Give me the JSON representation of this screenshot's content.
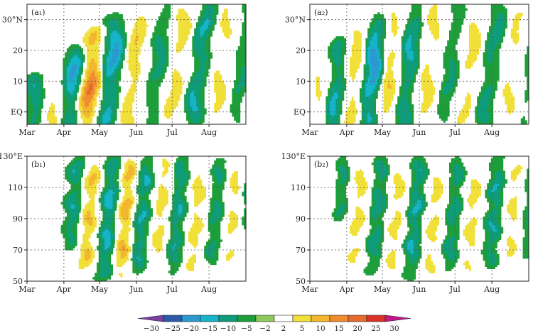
{
  "figure": {
    "palette": [
      "#7b3fa0",
      "#2c5aa8",
      "#2a9ad0",
      "#16b4c8",
      "#0f9c7a",
      "#1e9e3a",
      "#8fca5c",
      "#ffffff",
      "#f2e03a",
      "#f3b62e",
      "#ee8c2e",
      "#e56a2f",
      "#d8322a",
      "#c2188a"
    ]
  },
  "chart_data": [
    {
      "panel_label": "(a₁)",
      "type": "heatmap",
      "xlabel": "",
      "ylabel": "",
      "x_ticks": [
        "Mar",
        "Apr",
        "May",
        "Jun",
        "Jul",
        "Aug"
      ],
      "y_ticks": [
        "EQ",
        "10",
        "20",
        "30°N"
      ],
      "y_tick_values": [
        0,
        10,
        20,
        30
      ],
      "ylim": [
        -4,
        35
      ],
      "x_domain_days": [
        0,
        184
      ],
      "grid": true,
      "bands": [
        {
          "day": 5,
          "width": 7,
          "peak": -11,
          "ymax": 10,
          "amp": 3
        },
        {
          "day": 22,
          "width": 7,
          "peak": 9,
          "ymax": 14,
          "amp": 4
        },
        {
          "day": 36,
          "width": 9,
          "peak": -17,
          "ymax": 20,
          "amp": 4
        },
        {
          "day": 50,
          "width": 9,
          "peak": 22,
          "ymax": 26,
          "amp": 4
        },
        {
          "day": 66,
          "width": 9,
          "peak": -18,
          "ymax": 30,
          "amp": 5
        },
        {
          "day": 84,
          "width": 9,
          "peak": 11,
          "ymax": 33,
          "amp": 5
        },
        {
          "day": 104,
          "width": 8,
          "peak": -8,
          "ymax": 35,
          "amp": 6
        },
        {
          "day": 120,
          "width": 8,
          "peak": 10,
          "ymax": 35,
          "amp": 6
        },
        {
          "day": 139,
          "width": 8,
          "peak": -12,
          "ymax": 35,
          "amp": 6
        },
        {
          "day": 157,
          "width": 8,
          "peak": 8,
          "ymax": 35,
          "amp": 6
        },
        {
          "day": 175,
          "width": 7,
          "peak": -6,
          "ymax": 35,
          "amp": 5
        }
      ]
    },
    {
      "panel_label": "(a₂)",
      "type": "heatmap",
      "xlabel": "",
      "ylabel": "",
      "x_ticks": [
        "Mar",
        "Apr",
        "May",
        "Jun",
        "Jul",
        "Aug"
      ],
      "y_ticks": [
        "EQ",
        "10",
        "20",
        "30°N"
      ],
      "y_tick_values": [
        0,
        10,
        20,
        30
      ],
      "ylim": [
        -4,
        35
      ],
      "x_domain_days": [
        0,
        184
      ],
      "grid": true,
      "bands": [
        {
          "day": 6,
          "width": 6,
          "peak": 6,
          "ymax": 14,
          "amp": 3
        },
        {
          "day": 20,
          "width": 7,
          "peak": -12,
          "ymax": 22,
          "amp": 4
        },
        {
          "day": 34,
          "width": 8,
          "peak": 11,
          "ymax": 26,
          "amp": 4
        },
        {
          "day": 48,
          "width": 8,
          "peak": -21,
          "ymax": 30,
          "amp": 5
        },
        {
          "day": 62,
          "width": 8,
          "peak": 11,
          "ymax": 32,
          "amp": 5
        },
        {
          "day": 78,
          "width": 8,
          "peak": -12,
          "ymax": 34,
          "amp": 5
        },
        {
          "day": 94,
          "width": 8,
          "peak": 9,
          "ymax": 35,
          "amp": 6
        },
        {
          "day": 112,
          "width": 8,
          "peak": -7,
          "ymax": 35,
          "amp": 6
        },
        {
          "day": 128,
          "width": 8,
          "peak": 9,
          "ymax": 35,
          "amp": 6
        },
        {
          "day": 146,
          "width": 8,
          "peak": -9,
          "ymax": 35,
          "amp": 6
        },
        {
          "day": 164,
          "width": 8,
          "peak": 7,
          "ymax": 35,
          "amp": 6
        },
        {
          "day": 180,
          "width": 6,
          "peak": -5,
          "ymax": 35,
          "amp": 5
        }
      ]
    },
    {
      "panel_label": "(b₁)",
      "type": "heatmap",
      "xlabel": "",
      "ylabel": "",
      "x_ticks": [
        "Mar",
        "Apr",
        "May",
        "Jun",
        "Jul",
        "Aug"
      ],
      "y_ticks": [
        "50",
        "70",
        "90",
        "110",
        "130°E"
      ],
      "y_tick_values": [
        50,
        70,
        90,
        110,
        130
      ],
      "ylim": [
        50,
        130
      ],
      "x_domain_days": [
        0,
        184
      ],
      "grid": true,
      "bands": [
        {
          "day": 14,
          "width": 6,
          "peak": 5,
          "ymin": 98,
          "ymax": 130,
          "amp": 3
        },
        {
          "day": 34,
          "width": 7,
          "peak": -11,
          "ymin": 72,
          "ymax": 130,
          "amp": 4
        },
        {
          "day": 48,
          "width": 8,
          "peak": 13,
          "ymin": 56,
          "ymax": 128,
          "amp": 4
        },
        {
          "day": 64,
          "width": 8,
          "peak": -14,
          "ymin": 52,
          "ymax": 130,
          "amp": 4
        },
        {
          "day": 78,
          "width": 7,
          "peak": 16,
          "ymin": 52,
          "ymax": 130,
          "amp": 4
        },
        {
          "day": 92,
          "width": 7,
          "peak": -12,
          "ymin": 55,
          "ymax": 130,
          "amp": 4
        },
        {
          "day": 108,
          "width": 7,
          "peak": 10,
          "ymin": 55,
          "ymax": 130,
          "amp": 4
        },
        {
          "day": 122,
          "width": 7,
          "peak": -11,
          "ymin": 55,
          "ymax": 130,
          "amp": 4
        },
        {
          "day": 138,
          "width": 7,
          "peak": 10,
          "ymin": 55,
          "ymax": 130,
          "amp": 4
        },
        {
          "day": 154,
          "width": 7,
          "peak": -8,
          "ymin": 60,
          "ymax": 130,
          "amp": 4
        },
        {
          "day": 168,
          "width": 7,
          "peak": 8,
          "ymin": 60,
          "ymax": 130,
          "amp": 4
        },
        {
          "day": 182,
          "width": 5,
          "peak": -9,
          "ymin": 85,
          "ymax": 130,
          "amp": 3
        }
      ]
    },
    {
      "panel_label": "(b₂)",
      "type": "heatmap",
      "xlabel": "",
      "ylabel": "",
      "x_ticks": [
        "Mar",
        "Apr",
        "May",
        "Jun",
        "Jul",
        "Aug"
      ],
      "y_ticks": [
        "50",
        "70",
        "90",
        "110",
        "130°E"
      ],
      "y_tick_values": [
        50,
        70,
        90,
        110,
        130
      ],
      "ylim": [
        50,
        130
      ],
      "x_domain_days": [
        0,
        184
      ],
      "grid": true,
      "bands": [
        {
          "day": 6,
          "width": 6,
          "peak": 5,
          "ymin": 85,
          "ymax": 130,
          "amp": 3
        },
        {
          "day": 22,
          "width": 6,
          "peak": -7,
          "ymin": 90,
          "ymax": 130,
          "amp": 3
        },
        {
          "day": 36,
          "width": 7,
          "peak": 9,
          "ymin": 60,
          "ymax": 130,
          "amp": 4
        },
        {
          "day": 52,
          "width": 7,
          "peak": -10,
          "ymin": 55,
          "ymax": 130,
          "amp": 4
        },
        {
          "day": 68,
          "width": 7,
          "peak": 9,
          "ymin": 55,
          "ymax": 130,
          "amp": 4
        },
        {
          "day": 84,
          "width": 7,
          "peak": -12,
          "ymin": 52,
          "ymax": 130,
          "amp": 4
        },
        {
          "day": 100,
          "width": 7,
          "peak": 9,
          "ymin": 52,
          "ymax": 130,
          "amp": 4
        },
        {
          "day": 116,
          "width": 7,
          "peak": -9,
          "ymin": 55,
          "ymax": 130,
          "amp": 4
        },
        {
          "day": 132,
          "width": 7,
          "peak": 9,
          "ymin": 55,
          "ymax": 130,
          "amp": 4
        },
        {
          "day": 150,
          "width": 7,
          "peak": -11,
          "ymin": 60,
          "ymax": 130,
          "amp": 4
        },
        {
          "day": 166,
          "width": 7,
          "peak": 8,
          "ymin": 60,
          "ymax": 130,
          "amp": 4
        },
        {
          "day": 180,
          "width": 6,
          "peak": -6,
          "ymin": 65,
          "ymax": 130,
          "amp": 3
        }
      ]
    }
  ],
  "colorbar": {
    "levels": [
      -30,
      -25,
      -20,
      -15,
      -10,
      -5,
      -2,
      2,
      5,
      10,
      15,
      20,
      25,
      30
    ],
    "labels": [
      "−30",
      "−25",
      "−20",
      "−15",
      "−10",
      "−5",
      "−2",
      "2",
      "5",
      "10",
      "15",
      "20",
      "25",
      "30"
    ]
  }
}
